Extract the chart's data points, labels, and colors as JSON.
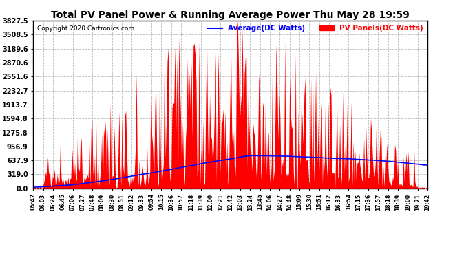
{
  "title": "Total PV Panel Power & Running Average Power Thu May 28 19:59",
  "copyright": "Copyright 2020 Cartronics.com",
  "legend_avg": "Average(DC Watts)",
  "legend_pv": "PV Panels(DC Watts)",
  "ylabel_values": [
    3827.5,
    3508.5,
    3189.6,
    2870.6,
    2551.6,
    2232.7,
    1913.7,
    1594.8,
    1275.8,
    956.9,
    637.9,
    319.0,
    0.0
  ],
  "ymax": 3827.5,
  "ymin": 0.0,
  "bg_color": "#ffffff",
  "grid_color": "#bbbbbb",
  "fill_color": "#ff0000",
  "avg_line_color": "#0000ff",
  "pv_line_color": "#ff0000",
  "title_color": "#000000",
  "copyright_color": "#000000",
  "avg_label_color": "#0000ff",
  "pv_label_color": "#ff0000",
  "x_tick_labels": [
    "05:42",
    "06:03",
    "06:24",
    "06:45",
    "07:06",
    "07:27",
    "07:48",
    "08:09",
    "08:30",
    "08:51",
    "09:12",
    "09:33",
    "09:54",
    "10:15",
    "10:36",
    "10:57",
    "11:18",
    "11:39",
    "12:00",
    "12:21",
    "12:42",
    "13:03",
    "13:24",
    "13:45",
    "14:06",
    "14:27",
    "14:48",
    "15:09",
    "15:30",
    "15:51",
    "16:12",
    "16:33",
    "16:54",
    "17:15",
    "17:36",
    "17:57",
    "18:18",
    "18:39",
    "19:00",
    "19:21",
    "19:42"
  ]
}
